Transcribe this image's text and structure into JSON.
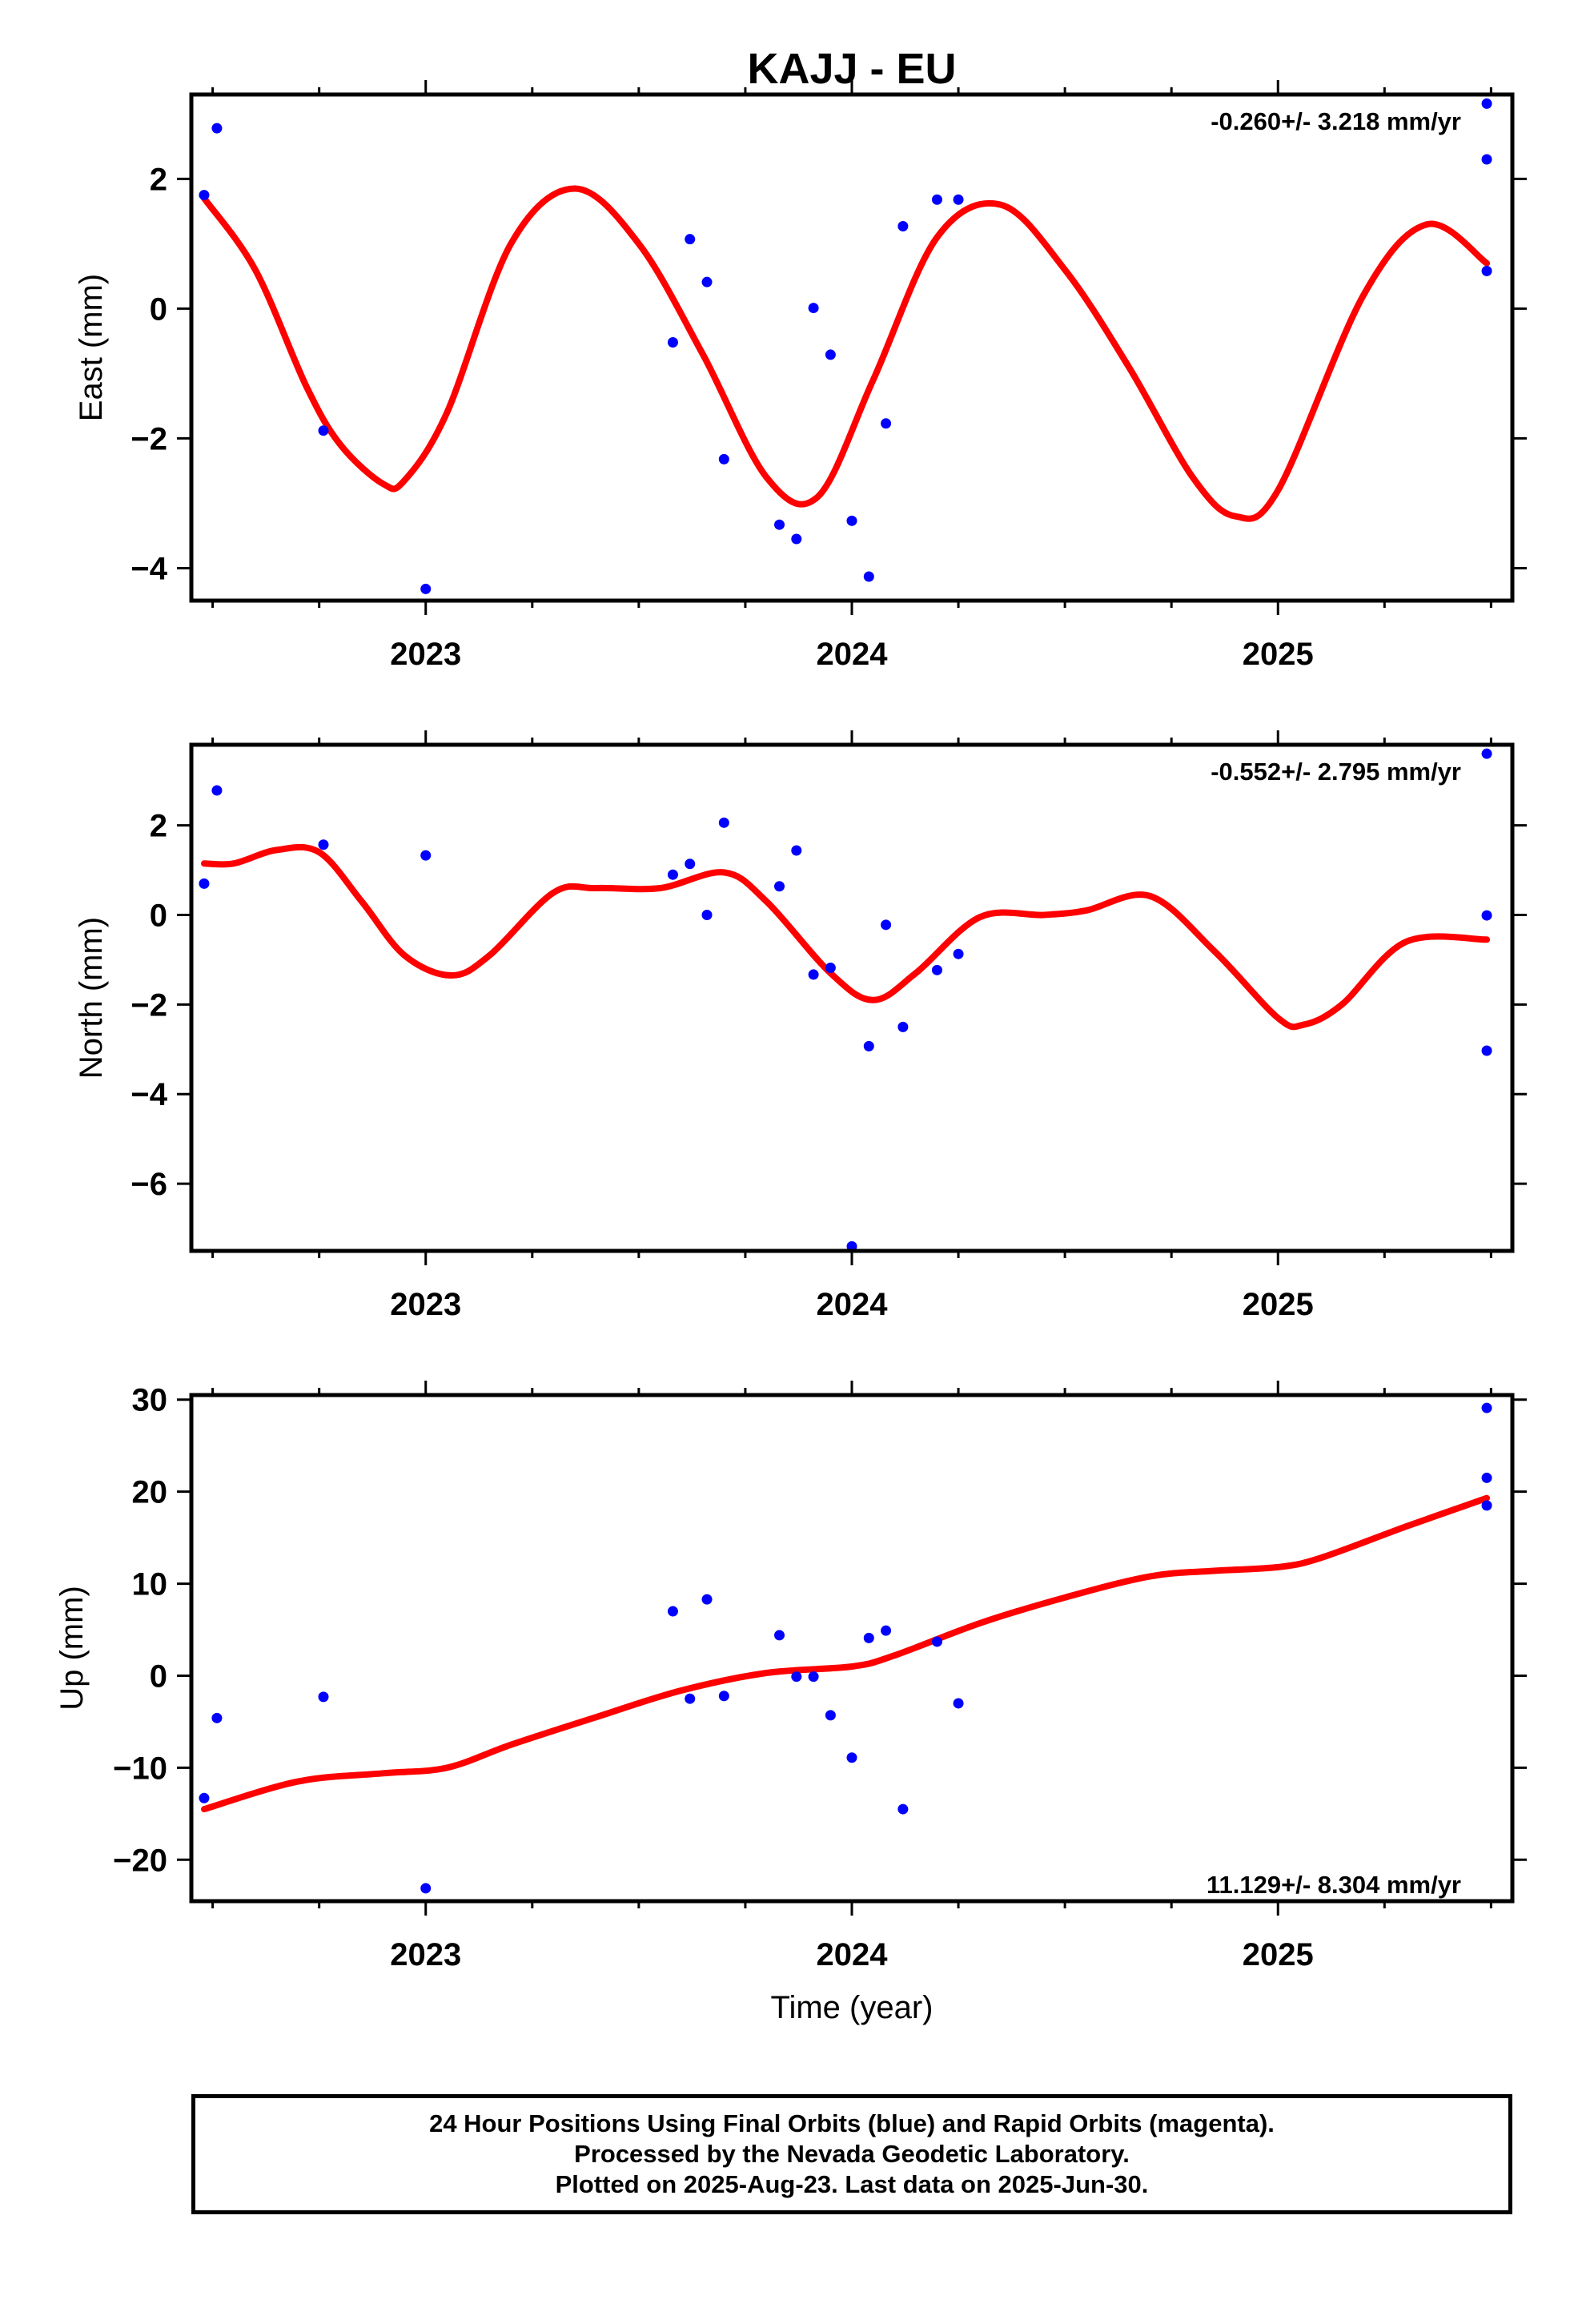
{
  "chart_data": [
    {
      "type": "scatter",
      "title": "KAJJ - EU",
      "ylabel": "East (mm)",
      "xlabel": "",
      "rate": "-0.260+/- 3.218 mm/yr",
      "rate_position": "top-right",
      "xlim": [
        2022.45,
        2025.55
      ],
      "ylim": [
        -4.5,
        3.3
      ],
      "yticks": [
        -4,
        -2,
        0,
        2
      ],
      "ytick_labels": [
        "−4",
        "−2",
        "0",
        "2"
      ],
      "xticks": [
        2023,
        2024,
        2025
      ],
      "xtick_labels": [
        "2023",
        "2024",
        "2025"
      ],
      "points": {
        "x": [
          2022.48,
          2022.51,
          2022.76,
          2023.0,
          2023.58,
          2023.62,
          2023.66,
          2023.7,
          2023.83,
          2023.87,
          2023.91,
          2023.95,
          2024.0,
          2024.04,
          2024.08,
          2024.12,
          2024.2,
          2024.25,
          2025.49,
          2025.49,
          2025.49
        ],
        "y": [
          1.75,
          2.78,
          -1.88,
          -4.32,
          -0.52,
          1.07,
          0.41,
          -2.32,
          -3.33,
          -3.55,
          0.01,
          -0.71,
          -3.27,
          -4.13,
          -1.77,
          1.27,
          1.68,
          1.68,
          3.16,
          2.3,
          0.58
        ]
      },
      "fit_line": {
        "x": [
          2022.48,
          2022.6,
          2022.72,
          2022.8,
          2022.9,
          2022.95,
          2023.05,
          2023.2,
          2023.35,
          2023.5,
          2023.65,
          2023.8,
          2023.92,
          2024.05,
          2024.2,
          2024.35,
          2024.5,
          2024.65,
          2024.8,
          2024.9,
          2025.0,
          2025.2,
          2025.35,
          2025.49
        ],
        "y": [
          1.7,
          0.6,
          -1.2,
          -2.1,
          -2.7,
          -2.65,
          -1.6,
          1.0,
          1.85,
          1.0,
          -0.7,
          -2.6,
          -2.9,
          -1.1,
          1.1,
          1.6,
          0.6,
          -0.9,
          -2.6,
          -3.2,
          -2.8,
          0.2,
          1.3,
          0.7
        ]
      },
      "colors": {
        "points": "#0000ff",
        "fit_line": "#ff0000"
      }
    },
    {
      "type": "scatter",
      "title": "",
      "ylabel": "North (mm)",
      "xlabel": "",
      "rate": "-0.552+/- 2.795 mm/yr",
      "rate_position": "top-right",
      "xlim": [
        2022.45,
        2025.55
      ],
      "ylim": [
        -7.5,
        3.8
      ],
      "yticks": [
        -6,
        -4,
        -2,
        0,
        2
      ],
      "ytick_labels": [
        "−6",
        "−4",
        "−2",
        "0",
        "2"
      ],
      "xticks": [
        2023,
        2024,
        2025
      ],
      "xtick_labels": [
        "2023",
        "2024",
        "2025"
      ],
      "points": {
        "x": [
          2022.48,
          2022.51,
          2022.76,
          2023.0,
          2023.58,
          2023.62,
          2023.66,
          2023.7,
          2023.83,
          2023.87,
          2023.91,
          2023.95,
          2024.0,
          2024.04,
          2024.08,
          2024.12,
          2024.2,
          2024.25,
          2025.49,
          2025.49,
          2025.49
        ],
        "y": [
          0.7,
          2.78,
          1.57,
          1.33,
          0.9,
          1.14,
          0.0,
          2.06,
          0.64,
          1.44,
          -1.33,
          -1.18,
          -7.4,
          -2.93,
          -0.22,
          -2.5,
          -1.23,
          -0.87,
          3.6,
          -0.01,
          -3.03
        ]
      },
      "fit_line": {
        "x": [
          2022.48,
          2022.55,
          2022.65,
          2022.75,
          2022.85,
          2022.95,
          2023.06,
          2023.15,
          2023.3,
          2023.4,
          2023.55,
          2023.7,
          2023.8,
          2023.95,
          2024.05,
          2024.15,
          2024.3,
          2024.45,
          2024.55,
          2024.7,
          2024.85,
          2025.0,
          2025.06,
          2025.15,
          2025.3,
          2025.49
        ],
        "y": [
          1.15,
          1.15,
          1.45,
          1.4,
          0.3,
          -0.9,
          -1.35,
          -0.9,
          0.5,
          0.6,
          0.6,
          0.95,
          0.3,
          -1.3,
          -1.9,
          -1.3,
          -0.05,
          0.0,
          0.1,
          0.42,
          -0.8,
          -2.3,
          -2.45,
          -2.0,
          -0.6,
          -0.55
        ]
      },
      "colors": {
        "points": "#0000ff",
        "fit_line": "#ff0000"
      }
    },
    {
      "type": "scatter",
      "title": "",
      "ylabel": "Up (mm)",
      "xlabel": "Time (year)",
      "rate": "11.129+/- 8.304 mm/yr",
      "rate_position": "bottom-right",
      "xlim": [
        2022.45,
        2025.55
      ],
      "ylim": [
        -24.5,
        30.5
      ],
      "yticks": [
        -20,
        -10,
        0,
        10,
        20,
        30
      ],
      "ytick_labels": [
        "−20",
        "−10",
        "0",
        "10",
        "20",
        "30"
      ],
      "xticks": [
        2023,
        2024,
        2025
      ],
      "xtick_labels": [
        "2023",
        "2024",
        "2025"
      ],
      "points": {
        "x": [
          2022.48,
          2022.51,
          2022.76,
          2023.0,
          2023.58,
          2023.62,
          2023.66,
          2023.7,
          2023.83,
          2023.87,
          2023.91,
          2023.95,
          2024.0,
          2024.04,
          2024.08,
          2024.12,
          2024.2,
          2024.25,
          2025.49,
          2025.49,
          2025.49
        ],
        "y": [
          -13.3,
          -4.6,
          -2.3,
          -23.1,
          7.0,
          -2.5,
          8.3,
          -2.2,
          4.4,
          -0.1,
          -0.1,
          -4.3,
          -8.9,
          4.1,
          4.9,
          -14.5,
          3.7,
          -3.0,
          29.1,
          21.5,
          18.5
        ]
      },
      "fit_line": {
        "x": [
          2022.48,
          2022.7,
          2022.9,
          2023.05,
          2023.2,
          2023.4,
          2023.6,
          2023.8,
          2024.0,
          2024.1,
          2024.3,
          2024.5,
          2024.7,
          2024.85,
          2025.0,
          2025.1,
          2025.3,
          2025.49
        ],
        "y": [
          -14.5,
          -11.5,
          -10.6,
          -10.0,
          -7.5,
          -4.5,
          -1.6,
          0.3,
          1.0,
          2.2,
          5.7,
          8.5,
          10.8,
          11.4,
          11.8,
          12.8,
          16.2,
          19.3
        ]
      },
      "colors": {
        "points": "#0000ff",
        "fit_line": "#ff0000"
      }
    }
  ],
  "footer": {
    "line1": "24 Hour Positions Using Final Orbits (blue) and Rapid Orbits (magenta).",
    "line2": "Processed by the Nevada Geodetic Laboratory.",
    "line3": "Plotted on 2025-Aug-23. Last data on 2025-Jun-30."
  }
}
